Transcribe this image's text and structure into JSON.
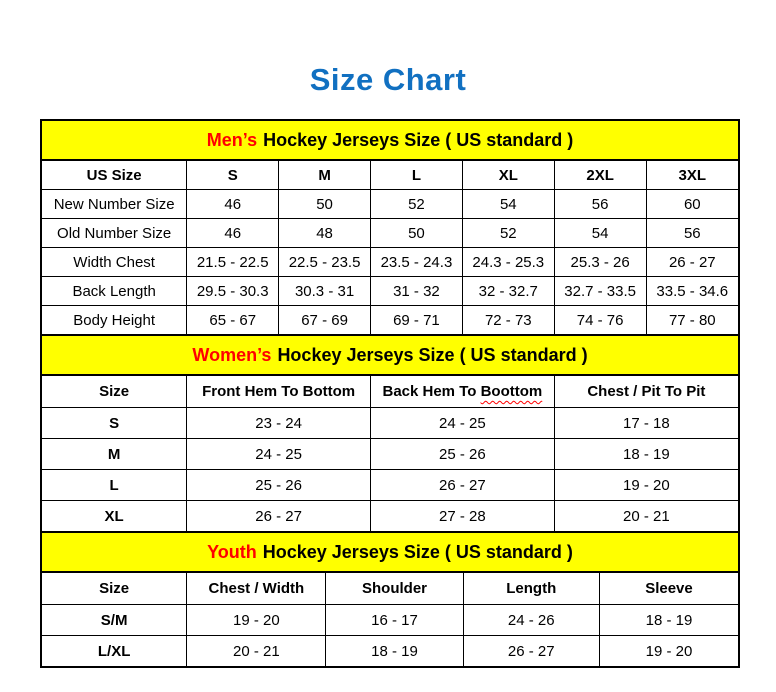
{
  "colors": {
    "title_blue": "#1170C1",
    "band_yellow": "#FFFF00",
    "highlight_red": "#FF0000",
    "border_black": "#000000"
  },
  "page": {
    "title": "Size Chart"
  },
  "tables": [
    {
      "id": "mens",
      "header": {
        "highlight": "Men’s",
        "rest": "Hockey Jerseys Size ( US standard )"
      },
      "columns": [
        {
          "text": "US Size"
        },
        {
          "text": "S"
        },
        {
          "text": "M"
        },
        {
          "text": "L"
        },
        {
          "text": "XL"
        },
        {
          "text": "2XL"
        },
        {
          "text": "3XL"
        }
      ],
      "rows": [
        {
          "label": "New Number Size",
          "values": [
            "46",
            "50",
            "52",
            "54",
            "56",
            "60"
          ]
        },
        {
          "label": "Old Number Size",
          "values": [
            "46",
            "48",
            "50",
            "52",
            "54",
            "56"
          ]
        },
        {
          "label": "Width Chest",
          "values": [
            "21.5 - 22.5",
            "22.5 - 23.5",
            "23.5 - 24.3",
            "24.3 - 25.3",
            "25.3 - 26",
            "26 - 27"
          ]
        },
        {
          "label": "Back Length",
          "values": [
            "29.5 - 30.3",
            "30.3 - 31",
            "31 - 32",
            "32 - 32.7",
            "32.7 - 33.5",
            "33.5 - 34.6"
          ]
        },
        {
          "label": "Body Height",
          "values": [
            "65 - 67",
            "67 - 69",
            "69 - 71",
            "72 - 73",
            "74 - 76",
            "77 - 80"
          ]
        }
      ],
      "label_bold": false
    },
    {
      "id": "womens",
      "header": {
        "highlight": "Women’s",
        "rest": "Hockey Jerseys Size ( US standard )"
      },
      "columns": [
        {
          "text": "Size"
        },
        {
          "text": "Front Hem To Bottom"
        },
        {
          "text": "Back Hem To ",
          "squiggle": "Boottom"
        },
        {
          "text": "Chest / Pit To Pit"
        }
      ],
      "rows": [
        {
          "label": "S",
          "values": [
            "23 - 24",
            "24 - 25",
            "17 - 18"
          ]
        },
        {
          "label": "M",
          "values": [
            "24 - 25",
            "25 - 26",
            "18 - 19"
          ]
        },
        {
          "label": "L",
          "values": [
            "25 - 26",
            "26 - 27",
            "19 - 20"
          ]
        },
        {
          "label": "XL",
          "values": [
            "26 - 27",
            "27 - 28",
            "20 - 21"
          ]
        }
      ],
      "label_bold": true
    },
    {
      "id": "youth",
      "header": {
        "highlight": "Youth",
        "rest": "Hockey Jerseys Size ( US standard )"
      },
      "columns": [
        {
          "text": "Size"
        },
        {
          "text": "Chest / Width"
        },
        {
          "text": "Shoulder"
        },
        {
          "text": "Length"
        },
        {
          "text": "Sleeve"
        }
      ],
      "rows": [
        {
          "label": "S/M",
          "values": [
            "19 - 20",
            "16 - 17",
            "24 - 26",
            "18 - 19"
          ]
        },
        {
          "label": "L/XL",
          "values": [
            "20 - 21",
            "18 - 19",
            "26 - 27",
            "19 - 20"
          ]
        }
      ],
      "label_bold": true
    }
  ]
}
